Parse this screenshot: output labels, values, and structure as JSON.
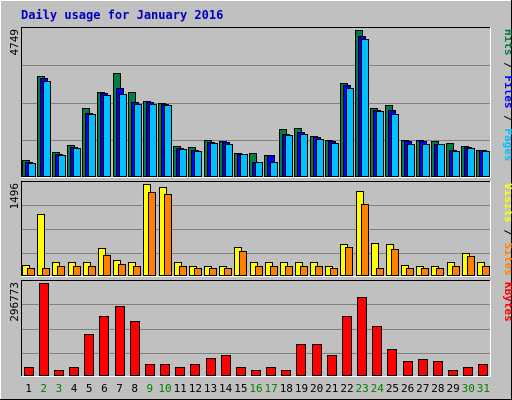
{
  "chart_data": {
    "type": "bar",
    "title": "Daily usage for January 2016",
    "categories": [
      "1",
      "2",
      "3",
      "4",
      "5",
      "6",
      "7",
      "8",
      "9",
      "10",
      "11",
      "12",
      "13",
      "14",
      "15",
      "16",
      "17",
      "18",
      "19",
      "20",
      "21",
      "22",
      "23",
      "24",
      "25",
      "26",
      "27",
      "28",
      "29",
      "30",
      "31"
    ],
    "weekend_days": [
      "2",
      "3",
      "9",
      "10",
      "16",
      "17",
      "23",
      "24",
      "30",
      "31"
    ],
    "colors": {
      "background": "#c0c0c0",
      "title": "#0000c0",
      "hits": "#008040",
      "files": "#0000ff",
      "pages": "#00c0ff",
      "visits": "#ffff00",
      "sites": "#ff8000",
      "kbytes": "#ff0000",
      "weekday_label": "#000000",
      "weekend_label": "#008000"
    },
    "panels": [
      {
        "id": "hits_files_pages",
        "ymax_label": "4749",
        "ymax": 4749,
        "legend": [
          {
            "text": "Pages",
            "color_key": "pages"
          },
          {
            "text": "Files",
            "color_key": "files"
          },
          {
            "text": "Hits",
            "color_key": "hits"
          }
        ],
        "series": [
          {
            "name": "Hits",
            "color_key": "hits",
            "values": [
              560,
              3250,
              800,
              1040,
              2240,
              2740,
              3370,
              2740,
              2440,
              2390,
              1010,
              970,
              1200,
              1170,
              790,
              770,
              700,
              1540,
              1580,
              1340,
              1190,
              3030,
              4749,
              2240,
              2340,
              1210,
              1200,
              1160,
              1090,
              1010,
              880
            ]
          },
          {
            "name": "Files",
            "color_key": "files",
            "values": [
              500,
              3190,
              740,
              970,
              2080,
              2700,
              2870,
              2420,
              2410,
              2360,
              950,
              880,
              1120,
              1140,
              750,
              480,
              700,
              1390,
              1460,
              1290,
              1170,
              2970,
              4570,
              2150,
              2180,
              1160,
              1150,
              1070,
              870,
              970,
              870
            ]
          },
          {
            "name": "Pages",
            "color_key": "pages",
            "values": [
              460,
              3110,
              700,
              930,
              2030,
              2650,
              2690,
              2360,
              2360,
              2330,
              920,
              840,
              1090,
              1080,
              750,
              470,
              500,
              1350,
              1380,
              1230,
              1110,
              2860,
              4470,
              2120,
              2040,
              1050,
              1080,
              1050,
              830,
              930,
              840
            ]
          }
        ]
      },
      {
        "id": "visits_sites",
        "ymax_label": "1496",
        "ymax": 1496,
        "legend": [
          {
            "text": "Sites",
            "color_key": "sites"
          },
          {
            "text": "Visits",
            "color_key": "visits"
          }
        ],
        "series": [
          {
            "name": "Visits",
            "color_key": "visits",
            "values": [
              180,
              1010,
              230,
              230,
              230,
              460,
              260,
              230,
              1496,
              1450,
              230,
              170,
              170,
              170,
              470,
              230,
              230,
              230,
              230,
              230,
              170,
              520,
              1380,
              540,
              520,
              180,
              170,
              170,
              230,
              370,
              230
            ]
          },
          {
            "name": "Sites",
            "color_key": "sites",
            "values": [
              130,
              130,
              170,
              170,
              170,
              340,
              200,
              160,
              1370,
              1340,
              160,
              130,
              130,
              130,
              400,
              160,
              160,
              160,
              160,
              160,
              130,
              470,
              1170,
              130,
              440,
              130,
              130,
              130,
              170,
              320,
              160
            ]
          }
        ]
      },
      {
        "id": "kbytes",
        "ymax_label": "296773",
        "ymax": 296773,
        "legend": [
          {
            "text": "KBytes",
            "color_key": "kbytes"
          }
        ],
        "series": [
          {
            "name": "KBytes",
            "color_key": "kbytes",
            "values": [
              28000,
              296773,
              20000,
              28000,
              133000,
              192000,
              223000,
              175000,
              38000,
              38000,
              30000,
              38000,
              58000,
              66000,
              28000,
              20000,
              28000,
              20000,
              103000,
              103000,
              68000,
              193000,
              253000,
              160000,
              86000,
              48000,
              53000,
              48000,
              18000,
              30000,
              38000
            ]
          }
        ]
      }
    ]
  }
}
